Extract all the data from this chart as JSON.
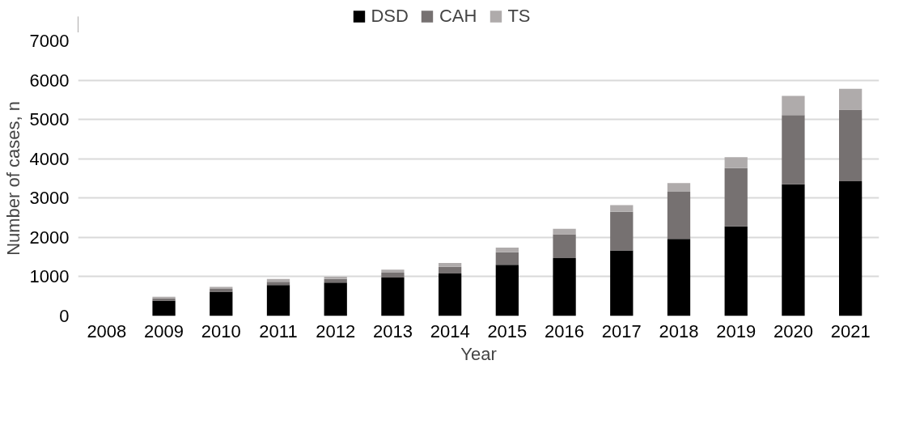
{
  "chart_data": {
    "type": "bar",
    "stacked": true,
    "xlabel": "Year",
    "ylabel": "Number of cases, n",
    "categories": [
      "2008",
      "2009",
      "2010",
      "2011",
      "2012",
      "2013",
      "2014",
      "2015",
      "2016",
      "2017",
      "2018",
      "2019",
      "2020",
      "2021"
    ],
    "series": [
      {
        "name": "DSD",
        "color": "#000000",
        "values": [
          0,
          390,
          620,
          790,
          850,
          980,
          1080,
          1300,
          1470,
          1670,
          1960,
          2280,
          3350,
          3430
        ]
      },
      {
        "name": "CAH",
        "color": "#767171",
        "values": [
          0,
          60,
          70,
          80,
          90,
          120,
          170,
          320,
          610,
          980,
          1200,
          1480,
          1760,
          1820
        ]
      },
      {
        "name": "TS",
        "color": "#afabab",
        "values": [
          0,
          40,
          50,
          70,
          60,
          80,
          100,
          120,
          140,
          170,
          220,
          280,
          490,
          530
        ]
      }
    ],
    "ylim": [
      0,
      7000
    ],
    "yticks": [
      0,
      1000,
      2000,
      3000,
      4000,
      5000,
      6000,
      7000
    ],
    "grid": "y",
    "legend": "top"
  }
}
